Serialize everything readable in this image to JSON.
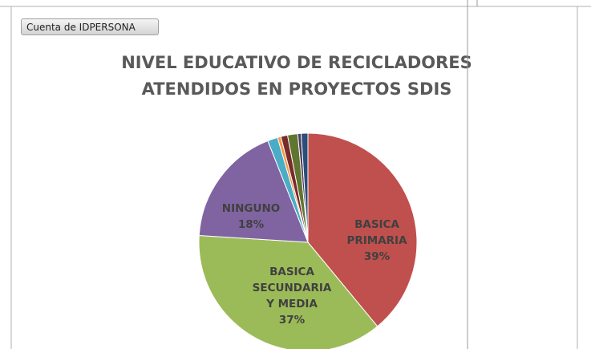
{
  "button": "Cuenta de IDPERSONA",
  "chart_data": {
    "type": "pie",
    "title": "NIVEL EDUCATIVO DE RECICLADORES ATENDIDOS EN PROYECTOS SDIS",
    "categories": [
      "BASICA PRIMARIA",
      "BASICA SECUNDARIA Y MEDIA",
      "NINGUNO",
      null,
      null,
      null,
      null,
      null,
      null
    ],
    "values": [
      39,
      37,
      18,
      1.5,
      0.5,
      1,
      1.5,
      0.5,
      1
    ],
    "value_labels": [
      "39%",
      "37%",
      "18%",
      null,
      null,
      null,
      null,
      null,
      null
    ],
    "colors": [
      "#c0504d",
      "#9bbb59",
      "#8064a2",
      "#4bacc6",
      "#f79646",
      "#772c2a",
      "#5f7530",
      "#4d3b62",
      "#2c4d75"
    ]
  }
}
